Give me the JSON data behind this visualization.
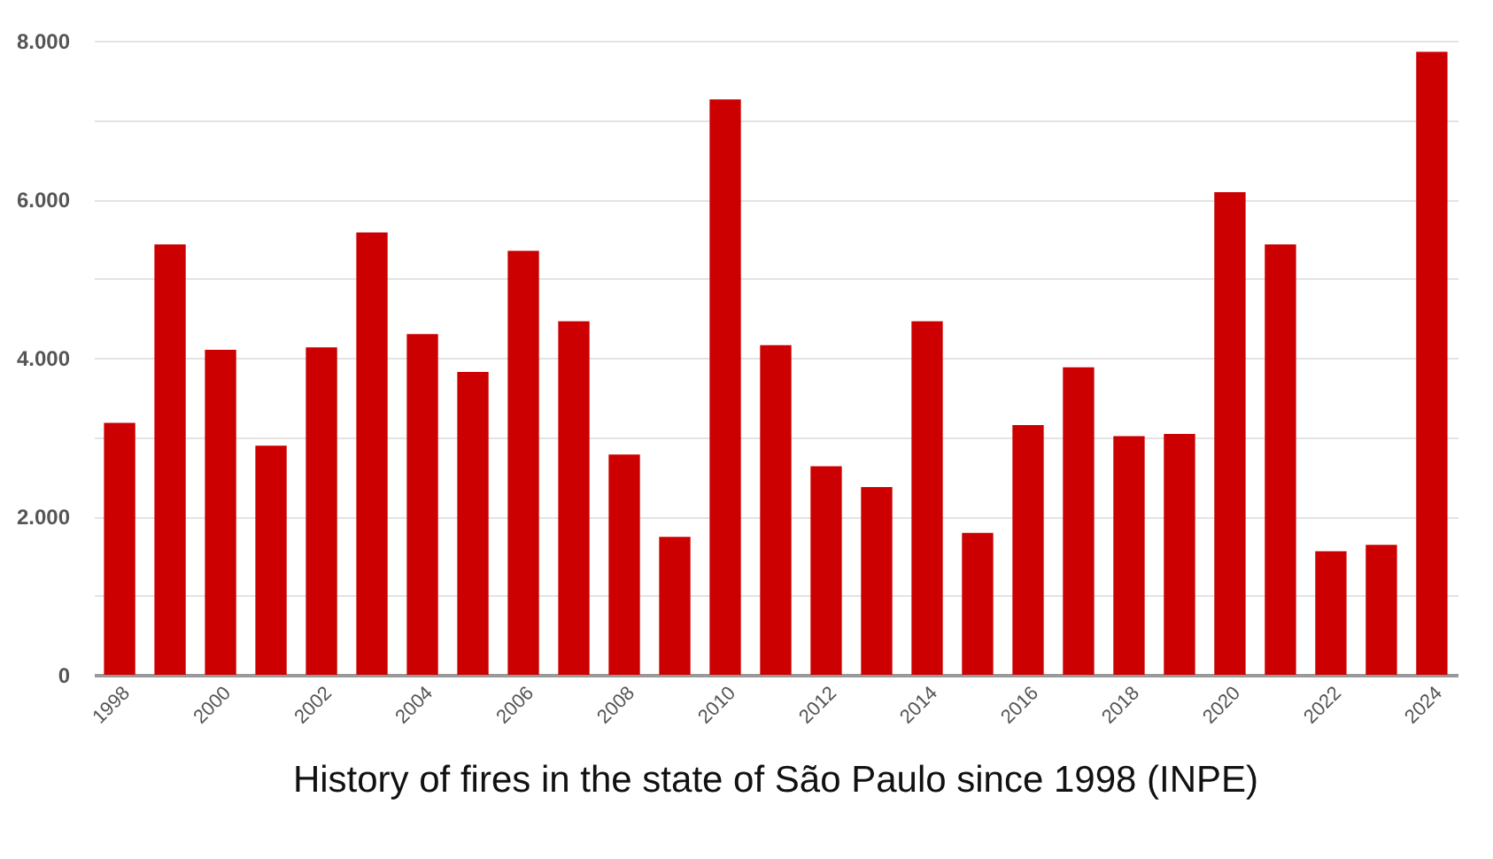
{
  "chart_data": {
    "type": "bar",
    "title": "History of fires in the state of São Paulo since 1998 (INPE)",
    "categories": [
      "1998",
      null,
      "2000",
      null,
      "2002",
      null,
      "2004",
      null,
      "2006",
      null,
      "2008",
      null,
      "2010",
      null,
      "2012",
      null,
      "2014",
      null,
      "2016",
      null,
      "2018",
      null,
      "2020",
      null,
      "2022",
      null,
      "2024"
    ],
    "values": [
      3180,
      5430,
      4100,
      2890,
      4130,
      5580,
      4300,
      3820,
      5350,
      4460,
      2780,
      1740,
      7260,
      4160,
      2630,
      2370,
      4460,
      1790,
      3150,
      3880,
      3010,
      3040,
      6090,
      5430,
      1560,
      1640,
      7860
    ],
    "color": "#cc0000",
    "ylim": [
      0,
      8000
    ],
    "yticks": [
      0,
      {
        "value": 1000,
        "label": null
      },
      {
        "value": 2000,
        "label": "2.000"
      },
      {
        "value": 3000,
        "label": null
      },
      {
        "value": 4000,
        "label": "4.000"
      },
      {
        "value": 5000,
        "label": null
      },
      {
        "value": 6000,
        "label": "6.000"
      },
      {
        "value": 7000,
        "label": null
      },
      {
        "value": 8000,
        "label": "8.000"
      }
    ],
    "grid": "y"
  }
}
